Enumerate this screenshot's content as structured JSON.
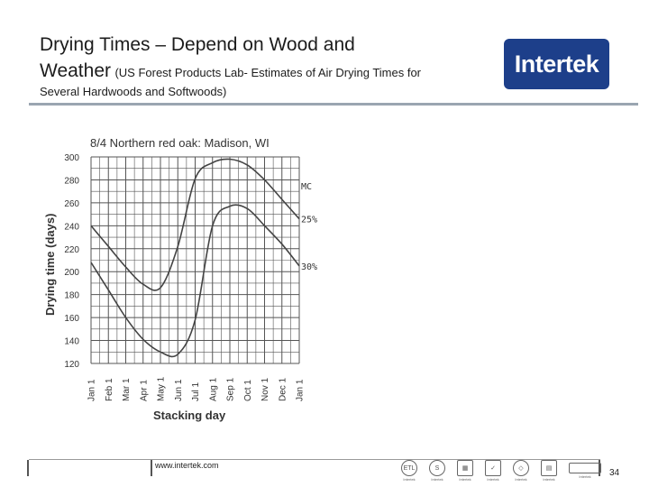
{
  "slide": {
    "title_main": "Drying Times – Depend on Wood and",
    "title_line2_big": "Weather",
    "title_line2_small": "(US Forest Products Lab- Estimates of Air Drying Times for",
    "subtitle": "Several Hardwoods and Softwoods)",
    "logo_text": "Intertek",
    "url": "www.intertek.com",
    "page_number": "34",
    "cert_caption": "Intertek"
  },
  "chart_data": {
    "type": "line",
    "title": "8/4 Northern red oak: Madison, WI",
    "xlabel": "Stacking day",
    "ylabel": "Drying time (days)",
    "categories": [
      "Jan 1",
      "Feb 1",
      "Mar 1",
      "Apr 1",
      "May 1",
      "Jun 1",
      "Jul 1",
      "Aug 1",
      "Sep 1",
      "Oct 1",
      "Nov 1",
      "Dec 1",
      "Jan 1"
    ],
    "ylim": [
      120,
      300
    ],
    "yticks": [
      120,
      140,
      160,
      180,
      200,
      220,
      240,
      260,
      280,
      300
    ],
    "grid": true,
    "legend_title": "MC",
    "series": [
      {
        "name": "25%",
        "values": [
          240,
          222,
          204,
          189,
          186,
          222,
          281,
          295,
          298,
          293,
          280,
          263,
          246
        ]
      },
      {
        "name": "30%",
        "values": [
          208,
          184,
          160,
          141,
          130,
          128,
          158,
          240,
          257,
          255,
          240,
          224,
          205
        ]
      }
    ]
  }
}
